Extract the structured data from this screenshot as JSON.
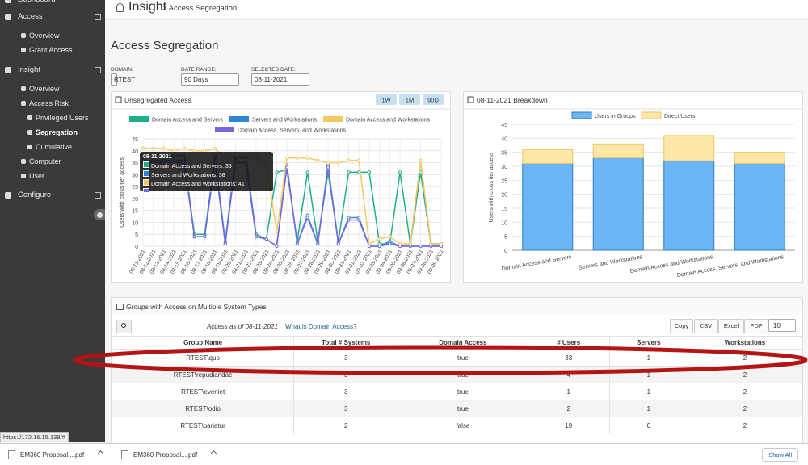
{
  "sidebar": {
    "items": [
      "Dashboard",
      "Access",
      "Overview",
      "Grant Access",
      "Insight",
      "Overview",
      "Access Risk",
      "Privileged Users",
      "Segregation",
      "Cumulative",
      "Computer",
      "User",
      "Configure"
    ]
  },
  "header": {
    "title": "Insight",
    "breadcrumb": "> Access Segregation"
  },
  "page_title": "Access Segregation",
  "filters": [
    {
      "label": "DOMAIN:",
      "value": "RTEST"
    },
    {
      "label": "DATE RANGE:",
      "value": "90 Days"
    },
    {
      "label": "SELECTED DATE:",
      "value": "08-11-2021"
    }
  ],
  "chart_data": [
    {
      "type": "line",
      "title": "Unsegregated Access",
      "buttons": [
        "1W",
        "1M",
        "90D"
      ],
      "y_label": "Users with cross tier access",
      "x": [
        "08-11-2021",
        "08-12-2021",
        "08-13-2021",
        "08-14-2021",
        "08-15-2021",
        "08-16-2021",
        "08-17-2021",
        "08-18-2021",
        "08-19-2021",
        "08-20-2021",
        "08-21-2021",
        "08-22-2021",
        "08-23-2021",
        "08-24-2021",
        "08-25-2021",
        "08-26-2021",
        "08-27-2021",
        "08-28-2021",
        "08-29-2021",
        "08-30-2021",
        "08-31-2021",
        "09-01-2021",
        "09-02-2021",
        "09-03-2021",
        "09-04-2021",
        "09-05-2021",
        "09-06-2021",
        "09-07-2021",
        "09-08-2021",
        "09-09-2021"
      ],
      "series": [
        {
          "name": "Domain Access and Servers",
          "color": "#1fae8c",
          "values": [
            36,
            36,
            36,
            36,
            36,
            5,
            5,
            37,
            2,
            37,
            37,
            5,
            3,
            31,
            32,
            2,
            31,
            2,
            31,
            2,
            31,
            31,
            31,
            1,
            1,
            31,
            1,
            31,
            1,
            1
          ]
        },
        {
          "name": "Servers and Workstations",
          "color": "#2f86d6",
          "values": [
            38,
            38,
            38,
            38,
            38,
            4,
            4,
            38,
            1,
            38,
            38,
            4,
            3,
            0,
            34,
            1,
            13,
            1,
            34,
            1,
            12,
            12,
            0,
            0,
            2,
            0,
            0,
            0,
            0,
            0
          ]
        },
        {
          "name": "Domain Access and Workstations",
          "color": "#f3c764",
          "values": [
            41,
            41,
            41,
            40,
            41,
            40,
            40,
            41,
            37,
            38,
            38,
            37,
            35,
            6,
            37,
            37,
            37,
            36,
            35,
            35,
            36,
            36,
            1,
            3,
            4,
            1,
            1,
            36,
            1,
            1
          ]
        },
        {
          "name": "Domain Access, Servers, and Workstations",
          "color": "#7467e0",
          "values": [
            35,
            35,
            35,
            35,
            35,
            4,
            4,
            35,
            1,
            35,
            35,
            4,
            3,
            0,
            33,
            1,
            12,
            1,
            33,
            1,
            11,
            11,
            0,
            0,
            1,
            0,
            0,
            0,
            0,
            0
          ]
        }
      ],
      "ylim": [
        0,
        45
      ],
      "yticks": [
        0,
        5,
        10,
        15,
        20,
        25,
        30,
        35,
        40,
        45
      ],
      "grid": true
    },
    {
      "type": "stacked-bar",
      "title": "08-11-2021 Breakdown",
      "y_label": "Users with cross tier access",
      "categories": [
        "Domain Access and Servers",
        "Servers and Workstations",
        "Domain Access and Workstations",
        "Domain Access, Servers, and Workstations"
      ],
      "series": [
        {
          "name": "Users in Groups",
          "color": "#6cb6f6",
          "values": [
            31,
            33,
            32,
            31
          ]
        },
        {
          "name": "Direct Users",
          "color": "#fde7a6",
          "values": [
            5,
            5,
            9,
            4
          ]
        }
      ],
      "ylim": [
        0,
        45
      ],
      "yticks": [
        0,
        5,
        10,
        15,
        20,
        25,
        30,
        35,
        40,
        45
      ],
      "grid": true
    }
  ],
  "table": {
    "title": "Groups with Access on Multiple System Types",
    "as_of": "Access as of 08-11-2021",
    "help_link": "What is Domain Access?",
    "buttons": [
      "Copy",
      "CSV",
      "Excel",
      "PDF"
    ],
    "page_size": "10",
    "columns": [
      "Group Name",
      "Total # Systems",
      "Domain Access",
      "# Users",
      "Servers",
      "Workstations"
    ],
    "rows": [
      [
        "RTEST\\quo",
        "3",
        "true",
        "33",
        "1",
        "2"
      ],
      [
        "RTEST\\repudiandae",
        "3",
        "true",
        "4",
        "1",
        "2"
      ],
      [
        "RTEST\\eveniet",
        "3",
        "true",
        "1",
        "1",
        "2"
      ],
      [
        "RTEST\\odio",
        "3",
        "true",
        "2",
        "1",
        "2"
      ],
      [
        "RTEST\\pariatur",
        "2",
        "false",
        "19",
        "0",
        "2"
      ]
    ]
  },
  "status_url": "https://172.16.15.138/#",
  "downloads": {
    "files": [
      "EM360 Proposal....pdf",
      "EM360 Proposal....pdf"
    ],
    "show_all": "Show All"
  }
}
